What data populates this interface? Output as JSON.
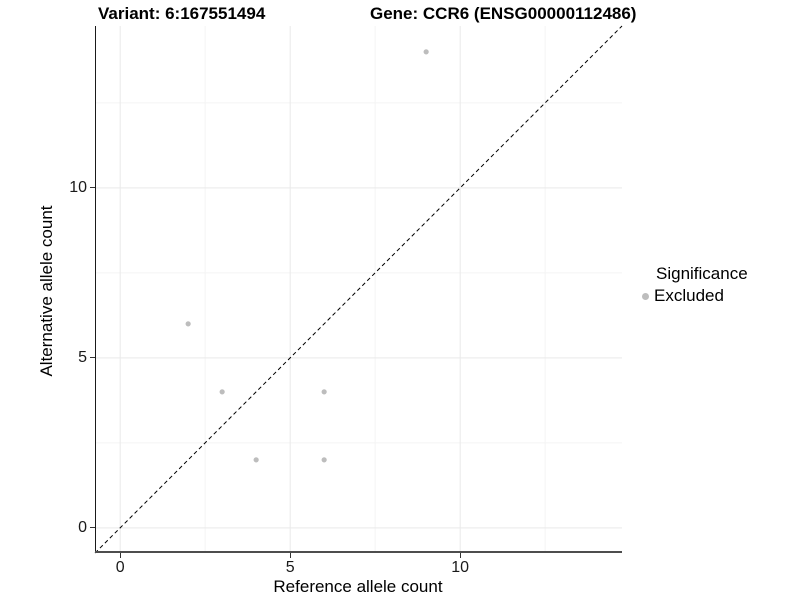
{
  "titles": {
    "variant": "Variant: 6:167551494",
    "gene": "Gene: CCR6 (ENSG00000112486)"
  },
  "x_axis": {
    "label": "Reference allele count"
  },
  "y_axis": {
    "label": "Alternative allele count"
  },
  "legend": {
    "title": "Significance",
    "items": [
      {
        "label": "Excluded",
        "color": "#bdbdbd"
      }
    ]
  },
  "chart_data": {
    "type": "scatter",
    "title": "Variant: 6:167551494 / Gene: CCR6 (ENSG00000112486)",
    "xlabel": "Reference allele count",
    "ylabel": "Alternative allele count",
    "xlim": [
      -0.74,
      14.76
    ],
    "ylim": [
      -0.74,
      14.76
    ],
    "x_ticks": [
      0,
      5,
      10
    ],
    "y_ticks": [
      0,
      5,
      10
    ],
    "x_minor_ticks": [
      2.5,
      7.5,
      12.5
    ],
    "y_minor_ticks": [
      2.5,
      7.5,
      12.5
    ],
    "grid": "major+minor",
    "legend_position": "right",
    "series": [
      {
        "name": "Excluded",
        "color": "#bdbdbd",
        "marker": "circle",
        "points": [
          [
            2,
            6
          ],
          [
            3,
            4
          ],
          [
            4,
            2
          ],
          [
            6,
            2
          ],
          [
            6,
            4
          ],
          [
            9,
            14
          ]
        ]
      }
    ],
    "reference_line": {
      "style": "dashed",
      "color": "#000000",
      "from": [
        -0.74,
        -0.74
      ],
      "to": [
        14.76,
        14.76
      ]
    },
    "colors": {
      "point": "#bdbdbd",
      "grid_major": "#e9e9e9",
      "grid_minor": "#f4f4f4",
      "axis_line_y": "#1a1a1a",
      "axis_line_x": "#4d4d4d",
      "tick_mark": "#333333",
      "background": "#ffffff"
    }
  }
}
